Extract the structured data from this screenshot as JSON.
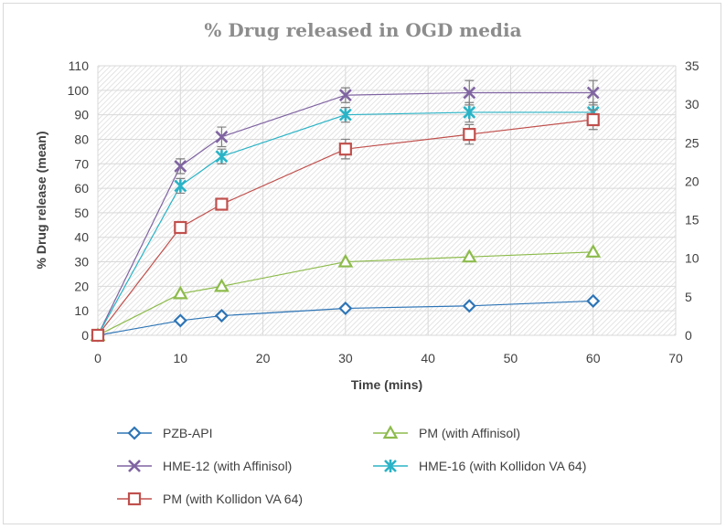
{
  "chart_data": {
    "type": "line",
    "title": "% Drug released in OGD media",
    "xlabel": "Time (mins)",
    "ylabel": "% Drug release (mean)",
    "xlim": [
      0,
      70
    ],
    "ylim": [
      0,
      110
    ],
    "y2lim": [
      0,
      35
    ],
    "x_ticks": [
      0,
      10,
      20,
      30,
      40,
      50,
      60,
      70
    ],
    "y_ticks": [
      0,
      10,
      20,
      30,
      40,
      50,
      60,
      70,
      80,
      90,
      100,
      110
    ],
    "y2_ticks": [
      0,
      5,
      10,
      15,
      20,
      25,
      30,
      35
    ],
    "grid": true,
    "legend_position": "bottom",
    "x": [
      0,
      10,
      15,
      30,
      45,
      60
    ],
    "series": [
      {
        "name": "PZB-API",
        "values": [
          0,
          6,
          8,
          11,
          12,
          14
        ],
        "errors": [
          0,
          0,
          0,
          0,
          0,
          0
        ],
        "color": "#2e75b6",
        "marker": "diamond"
      },
      {
        "name": "PM (with Affinisol)",
        "values": [
          0,
          17,
          20,
          30,
          32,
          34
        ],
        "errors": [
          0,
          0,
          0,
          0,
          0,
          0
        ],
        "color": "#8dbb4c",
        "marker": "triangle"
      },
      {
        "name": "HME-12 (with Affinisol)",
        "values": [
          0,
          69,
          81,
          98,
          99,
          99
        ],
        "errors": [
          0,
          3,
          4,
          3,
          5,
          5
        ],
        "color": "#8064a2",
        "marker": "x"
      },
      {
        "name": "HME-16 (with Kollidon VA 64)",
        "values": [
          0,
          61,
          73,
          90,
          91,
          91
        ],
        "errors": [
          0,
          3,
          3,
          3,
          4,
          4
        ],
        "color": "#2ab3c6",
        "marker": "star"
      },
      {
        "name": "PM (with Kollidon VA 64)",
        "values": [
          0,
          44,
          53.5,
          76,
          82,
          88
        ],
        "errors": [
          0,
          0,
          0,
          4,
          4,
          4
        ],
        "color": "#c0504d",
        "marker": "square"
      }
    ]
  }
}
